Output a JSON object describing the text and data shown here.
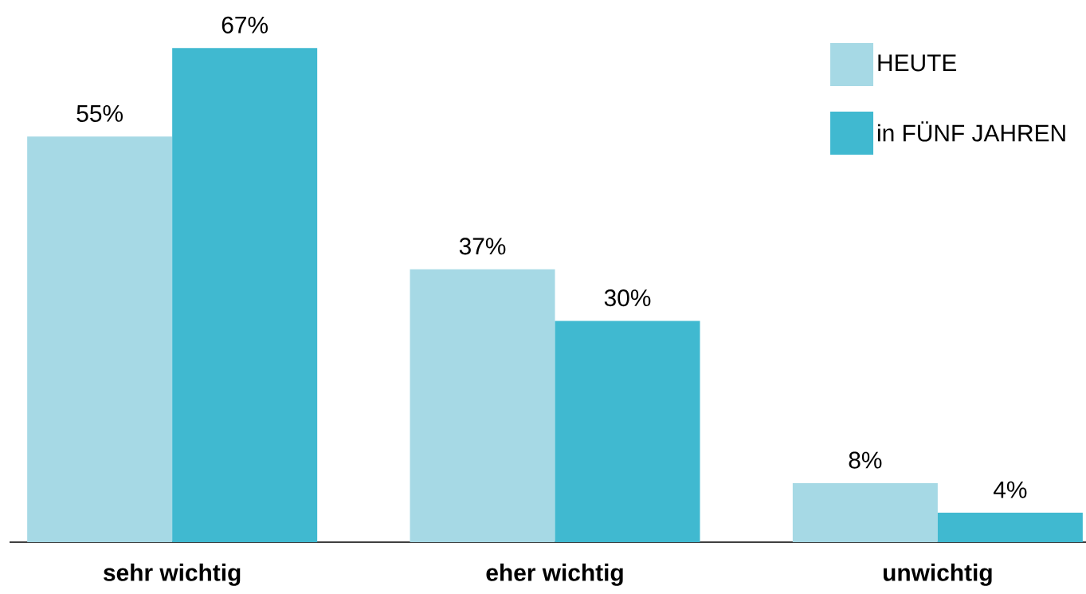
{
  "chart_data": {
    "type": "bar",
    "categories": [
      "sehr wichtig",
      "eher wichtig",
      "unwichtig"
    ],
    "series": [
      {
        "name": "HEUTE",
        "color": "#a6d9e5",
        "values": [
          55,
          37,
          8
        ],
        "value_labels": [
          "55%",
          "37%",
          "8%"
        ]
      },
      {
        "name": "in FÜNF JAHREN",
        "color": "#40b9d0",
        "values": [
          67,
          30,
          4
        ],
        "value_labels": [
          "67%",
          "30%",
          "4%"
        ]
      }
    ],
    "legend": "top right"
  }
}
